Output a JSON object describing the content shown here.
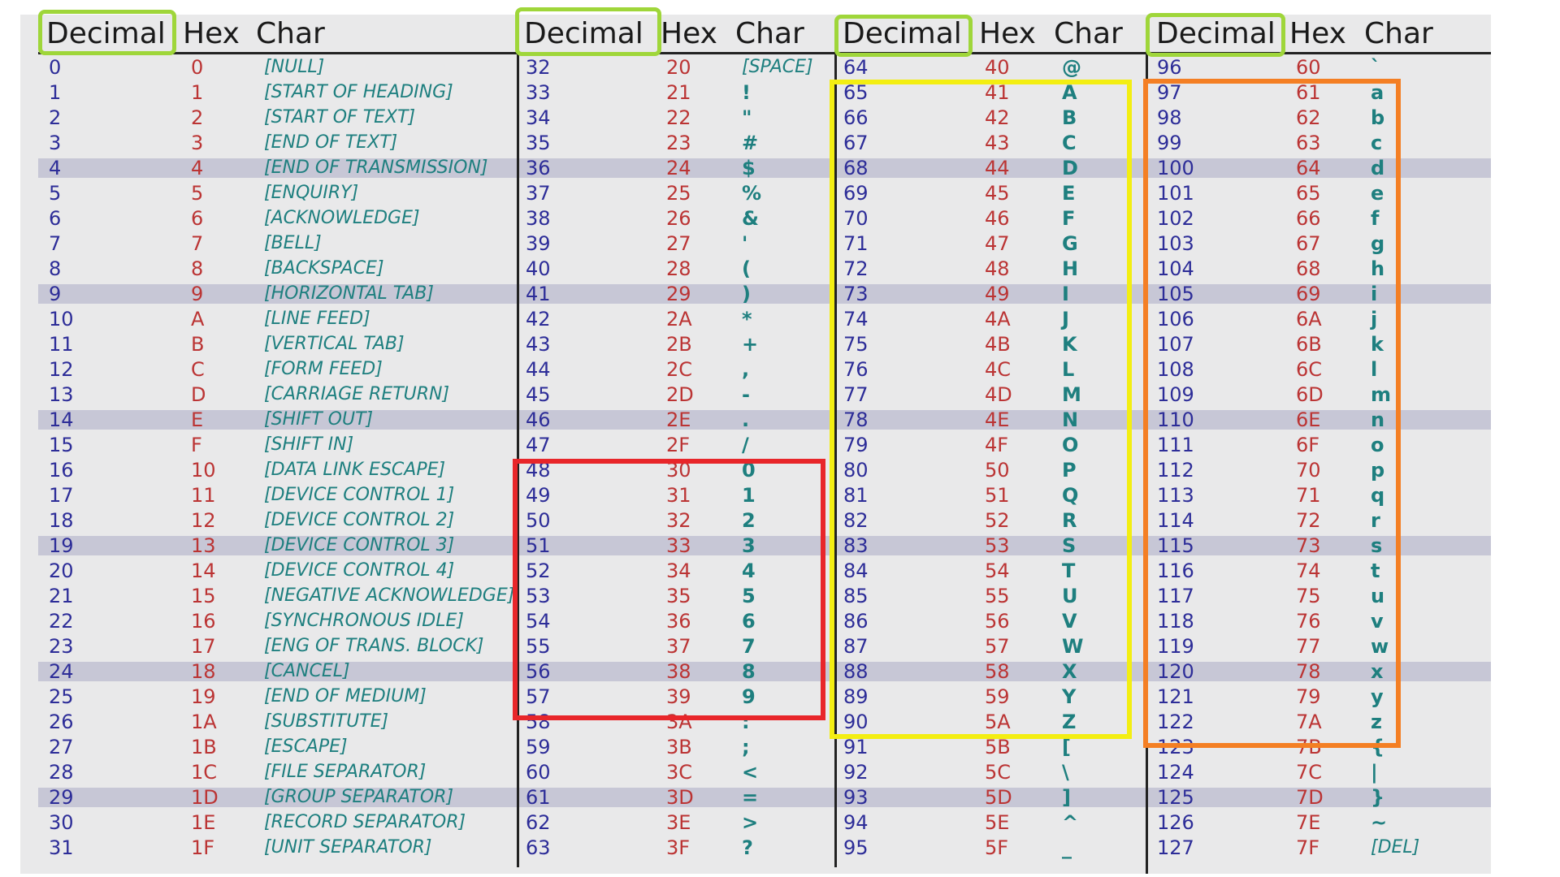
{
  "headers": [
    {
      "decimal": "Decimal",
      "hex": "Hex",
      "char": "Char"
    },
    {
      "decimal": "Decimal",
      "hex": "Hex",
      "char": "Char"
    },
    {
      "decimal": "Decimal",
      "hex": "Hex",
      "char": "Char"
    },
    {
      "decimal": "Decimal",
      "hex": "Hex",
      "char": "Char"
    }
  ],
  "columns": [
    [
      [
        "0",
        "0",
        "[NULL]"
      ],
      [
        "1",
        "1",
        "[START OF HEADING]"
      ],
      [
        "2",
        "2",
        "[START OF TEXT]"
      ],
      [
        "3",
        "3",
        "[END OF TEXT]"
      ],
      [
        "4",
        "4",
        "[END OF TRANSMISSION]"
      ],
      [
        "5",
        "5",
        "[ENQUIRY]"
      ],
      [
        "6",
        "6",
        "[ACKNOWLEDGE]"
      ],
      [
        "7",
        "7",
        "[BELL]"
      ],
      [
        "8",
        "8",
        "[BACKSPACE]"
      ],
      [
        "9",
        "9",
        "[HORIZONTAL TAB]"
      ],
      [
        "10",
        "A",
        "[LINE FEED]"
      ],
      [
        "11",
        "B",
        "[VERTICAL TAB]"
      ],
      [
        "12",
        "C",
        "[FORM FEED]"
      ],
      [
        "13",
        "D",
        "[CARRIAGE RETURN]"
      ],
      [
        "14",
        "E",
        "[SHIFT OUT]"
      ],
      [
        "15",
        "F",
        "[SHIFT IN]"
      ],
      [
        "16",
        "10",
        "[DATA LINK ESCAPE]"
      ],
      [
        "17",
        "11",
        "[DEVICE CONTROL 1]"
      ],
      [
        "18",
        "12",
        "[DEVICE CONTROL 2]"
      ],
      [
        "19",
        "13",
        "[DEVICE CONTROL 3]"
      ],
      [
        "20",
        "14",
        "[DEVICE CONTROL 4]"
      ],
      [
        "21",
        "15",
        "[NEGATIVE ACKNOWLEDGE]"
      ],
      [
        "22",
        "16",
        "[SYNCHRONOUS IDLE]"
      ],
      [
        "23",
        "17",
        "[ENG OF TRANS. BLOCK]"
      ],
      [
        "24",
        "18",
        "[CANCEL]"
      ],
      [
        "25",
        "19",
        "[END OF MEDIUM]"
      ],
      [
        "26",
        "1A",
        "[SUBSTITUTE]"
      ],
      [
        "27",
        "1B",
        "[ESCAPE]"
      ],
      [
        "28",
        "1C",
        "[FILE SEPARATOR]"
      ],
      [
        "29",
        "1D",
        "[GROUP SEPARATOR]"
      ],
      [
        "30",
        "1E",
        "[RECORD SEPARATOR]"
      ],
      [
        "31",
        "1F",
        "[UNIT SEPARATOR]"
      ]
    ],
    [
      [
        "32",
        "20",
        "[SPACE]"
      ],
      [
        "33",
        "21",
        "!"
      ],
      [
        "34",
        "22",
        "\""
      ],
      [
        "35",
        "23",
        "#"
      ],
      [
        "36",
        "24",
        "$"
      ],
      [
        "37",
        "25",
        "%"
      ],
      [
        "38",
        "26",
        "&"
      ],
      [
        "39",
        "27",
        "'"
      ],
      [
        "40",
        "28",
        "("
      ],
      [
        "41",
        "29",
        ")"
      ],
      [
        "42",
        "2A",
        "*"
      ],
      [
        "43",
        "2B",
        "+"
      ],
      [
        "44",
        "2C",
        ","
      ],
      [
        "45",
        "2D",
        "-"
      ],
      [
        "46",
        "2E",
        "."
      ],
      [
        "47",
        "2F",
        "/"
      ],
      [
        "48",
        "30",
        "0"
      ],
      [
        "49",
        "31",
        "1"
      ],
      [
        "50",
        "32",
        "2"
      ],
      [
        "51",
        "33",
        "3"
      ],
      [
        "52",
        "34",
        "4"
      ],
      [
        "53",
        "35",
        "5"
      ],
      [
        "54",
        "36",
        "6"
      ],
      [
        "55",
        "37",
        "7"
      ],
      [
        "56",
        "38",
        "8"
      ],
      [
        "57",
        "39",
        "9"
      ],
      [
        "58",
        "3A",
        ":"
      ],
      [
        "59",
        "3B",
        ";"
      ],
      [
        "60",
        "3C",
        "<"
      ],
      [
        "61",
        "3D",
        "="
      ],
      [
        "62",
        "3E",
        ">"
      ],
      [
        "63",
        "3F",
        "?"
      ]
    ],
    [
      [
        "64",
        "40",
        "@"
      ],
      [
        "65",
        "41",
        "A"
      ],
      [
        "66",
        "42",
        "B"
      ],
      [
        "67",
        "43",
        "C"
      ],
      [
        "68",
        "44",
        "D"
      ],
      [
        "69",
        "45",
        "E"
      ],
      [
        "70",
        "46",
        "F"
      ],
      [
        "71",
        "47",
        "G"
      ],
      [
        "72",
        "48",
        "H"
      ],
      [
        "73",
        "49",
        "I"
      ],
      [
        "74",
        "4A",
        "J"
      ],
      [
        "75",
        "4B",
        "K"
      ],
      [
        "76",
        "4C",
        "L"
      ],
      [
        "77",
        "4D",
        "M"
      ],
      [
        "78",
        "4E",
        "N"
      ],
      [
        "79",
        "4F",
        "O"
      ],
      [
        "80",
        "50",
        "P"
      ],
      [
        "81",
        "51",
        "Q"
      ],
      [
        "82",
        "52",
        "R"
      ],
      [
        "83",
        "53",
        "S"
      ],
      [
        "84",
        "54",
        "T"
      ],
      [
        "85",
        "55",
        "U"
      ],
      [
        "86",
        "56",
        "V"
      ],
      [
        "87",
        "57",
        "W"
      ],
      [
        "88",
        "58",
        "X"
      ],
      [
        "89",
        "59",
        "Y"
      ],
      [
        "90",
        "5A",
        "Z"
      ],
      [
        "91",
        "5B",
        "["
      ],
      [
        "92",
        "5C",
        "\\"
      ],
      [
        "93",
        "5D",
        "]"
      ],
      [
        "94",
        "5E",
        "^"
      ],
      [
        "95",
        "5F",
        "_"
      ]
    ],
    [
      [
        "96",
        "60",
        "`"
      ],
      [
        "97",
        "61",
        "a"
      ],
      [
        "98",
        "62",
        "b"
      ],
      [
        "99",
        "63",
        "c"
      ],
      [
        "100",
        "64",
        "d"
      ],
      [
        "101",
        "65",
        "e"
      ],
      [
        "102",
        "66",
        "f"
      ],
      [
        "103",
        "67",
        "g"
      ],
      [
        "104",
        "68",
        "h"
      ],
      [
        "105",
        "69",
        "i"
      ],
      [
        "106",
        "6A",
        "j"
      ],
      [
        "107",
        "6B",
        "k"
      ],
      [
        "108",
        "6C",
        "l"
      ],
      [
        "109",
        "6D",
        "m"
      ],
      [
        "110",
        "6E",
        "n"
      ],
      [
        "111",
        "6F",
        "o"
      ],
      [
        "112",
        "70",
        "p"
      ],
      [
        "113",
        "71",
        "q"
      ],
      [
        "114",
        "72",
        "r"
      ],
      [
        "115",
        "73",
        "s"
      ],
      [
        "116",
        "74",
        "t"
      ],
      [
        "117",
        "75",
        "u"
      ],
      [
        "118",
        "76",
        "v"
      ],
      [
        "119",
        "77",
        "w"
      ],
      [
        "120",
        "78",
        "x"
      ],
      [
        "121",
        "79",
        "y"
      ],
      [
        "122",
        "7A",
        "z"
      ],
      [
        "123",
        "7B",
        "{"
      ],
      [
        "124",
        "7C",
        "|"
      ],
      [
        "125",
        "7D",
        "}"
      ],
      [
        "126",
        "7E",
        "~"
      ],
      [
        "127",
        "7F",
        "[DEL]"
      ]
    ]
  ],
  "banded_row_indices": [
    4,
    9,
    14,
    19,
    24,
    29
  ],
  "highlights": [
    {
      "name": "header-highlight-decimal-1",
      "color": "#9fd63a"
    },
    {
      "name": "header-highlight-decimal-2",
      "color": "#9fd63a"
    },
    {
      "name": "header-highlight-decimal-3",
      "color": "#9fd63a"
    },
    {
      "name": "header-highlight-decimal-4",
      "color": "#9fd63a"
    },
    {
      "name": "digits-highlight",
      "color": "#e8262a"
    },
    {
      "name": "uppercase-highlight",
      "color": "#f3ee12"
    },
    {
      "name": "lowercase-highlight",
      "color": "#f47f24"
    }
  ],
  "colors": {
    "decimal": "#2d2d98",
    "hex": "#bb3434",
    "char": "#1e7f7f",
    "band": "#c7c7d6",
    "background": "#e9e9ea"
  }
}
